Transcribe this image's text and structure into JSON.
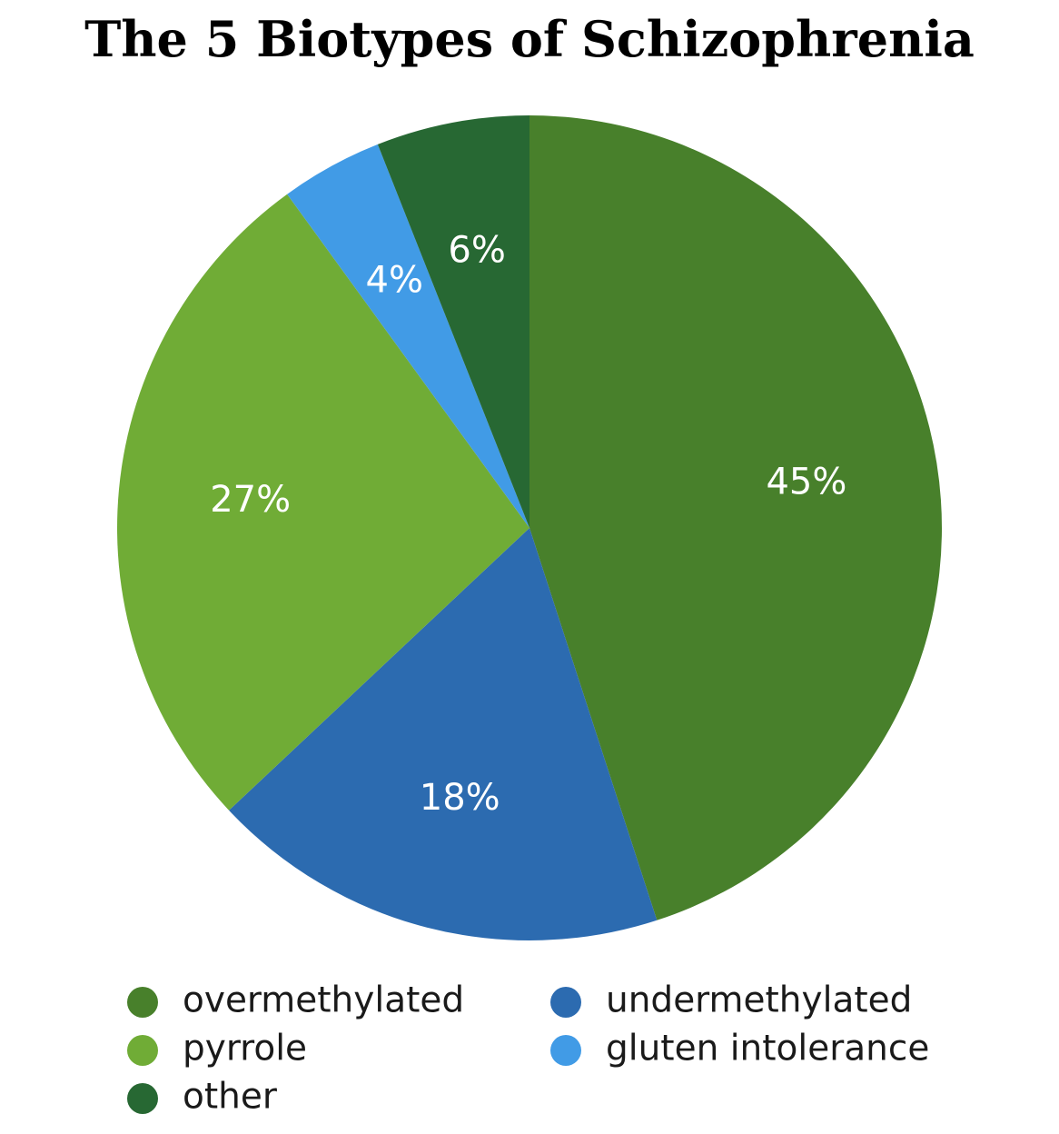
{
  "chart_data": {
    "type": "pie",
    "title": "The 5 Biotypes of Schizophrenia",
    "categories": [
      "overmethylated",
      "undermethylated",
      "pyrrole",
      "gluten intolerance",
      "other"
    ],
    "values": [
      45,
      18,
      27,
      4,
      6
    ],
    "value_labels": [
      "45%",
      "18%",
      "27%",
      "4%",
      "6%"
    ],
    "colors": [
      "#48802B",
      "#2C6BB0",
      "#70AC36",
      "#419BE6",
      "#276833"
    ],
    "start_angle_deg": 0,
    "direction": "clockwise",
    "legend": {
      "placement": "bottom",
      "columns": 2,
      "items": [
        {
          "label": "overmethylated",
          "color": "#48802B"
        },
        {
          "label": "undermethylated",
          "color": "#2C6BB0"
        },
        {
          "label": "pyrrole",
          "color": "#70AC36"
        },
        {
          "label": "gluten intolerance",
          "color": "#419BE6"
        },
        {
          "label": "other",
          "color": "#276833"
        }
      ]
    }
  }
}
